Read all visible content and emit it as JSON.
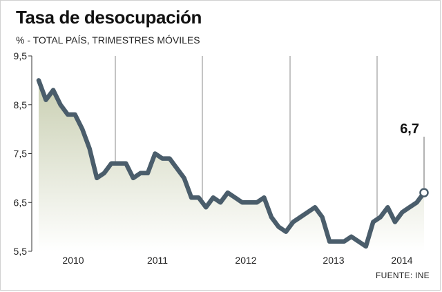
{
  "header": {
    "title": "Tasa de desocupación",
    "subtitle": "% - TOTAL PAÍS, TRIMESTRES MÓVILES"
  },
  "footer": {
    "source": "FUENTE: INE"
  },
  "colors": {
    "line": "#4a5d6b",
    "area_top": "#c9cfb2",
    "area_bottom": "#ffffff",
    "grid": "#8a8a8a",
    "axis": "#333333"
  },
  "chart_data": {
    "type": "line",
    "title": "Tasa de desocupación",
    "subtitle": "% - TOTAL PAÍS, TRIMESTRES MÓVILES",
    "xlabel": "",
    "ylabel": "",
    "ylim": [
      5.5,
      9.5
    ],
    "yticks": [
      "9,5",
      "8,5",
      "7,5",
      "6,5",
      "5,5"
    ],
    "ytick_values": [
      9.5,
      8.5,
      7.5,
      6.5,
      5.5
    ],
    "year_labels": [
      "2010",
      "2011",
      "2012",
      "2013",
      "2014"
    ],
    "grid": "vertical year separators",
    "annotation": {
      "label": "6,7",
      "value": 6.7
    },
    "series": [
      {
        "values": [
          9.0,
          8.6,
          8.8,
          8.5,
          8.3,
          8.3,
          8.0,
          7.6,
          7.0,
          7.1,
          7.3,
          7.3,
          7.3,
          7.0,
          7.1,
          7.1,
          7.5,
          7.4,
          7.4,
          7.2,
          7.0,
          6.6,
          6.6,
          6.4,
          6.6,
          6.5,
          6.7,
          6.6,
          6.5,
          6.5,
          6.5,
          6.6,
          6.2,
          6.0,
          5.9,
          6.1,
          6.2,
          6.3,
          6.4,
          6.2,
          5.7,
          5.7,
          5.7,
          5.8,
          5.7,
          5.6,
          6.1,
          6.2,
          6.4,
          6.1,
          6.3,
          6.4,
          6.5,
          6.7
        ]
      }
    ]
  }
}
